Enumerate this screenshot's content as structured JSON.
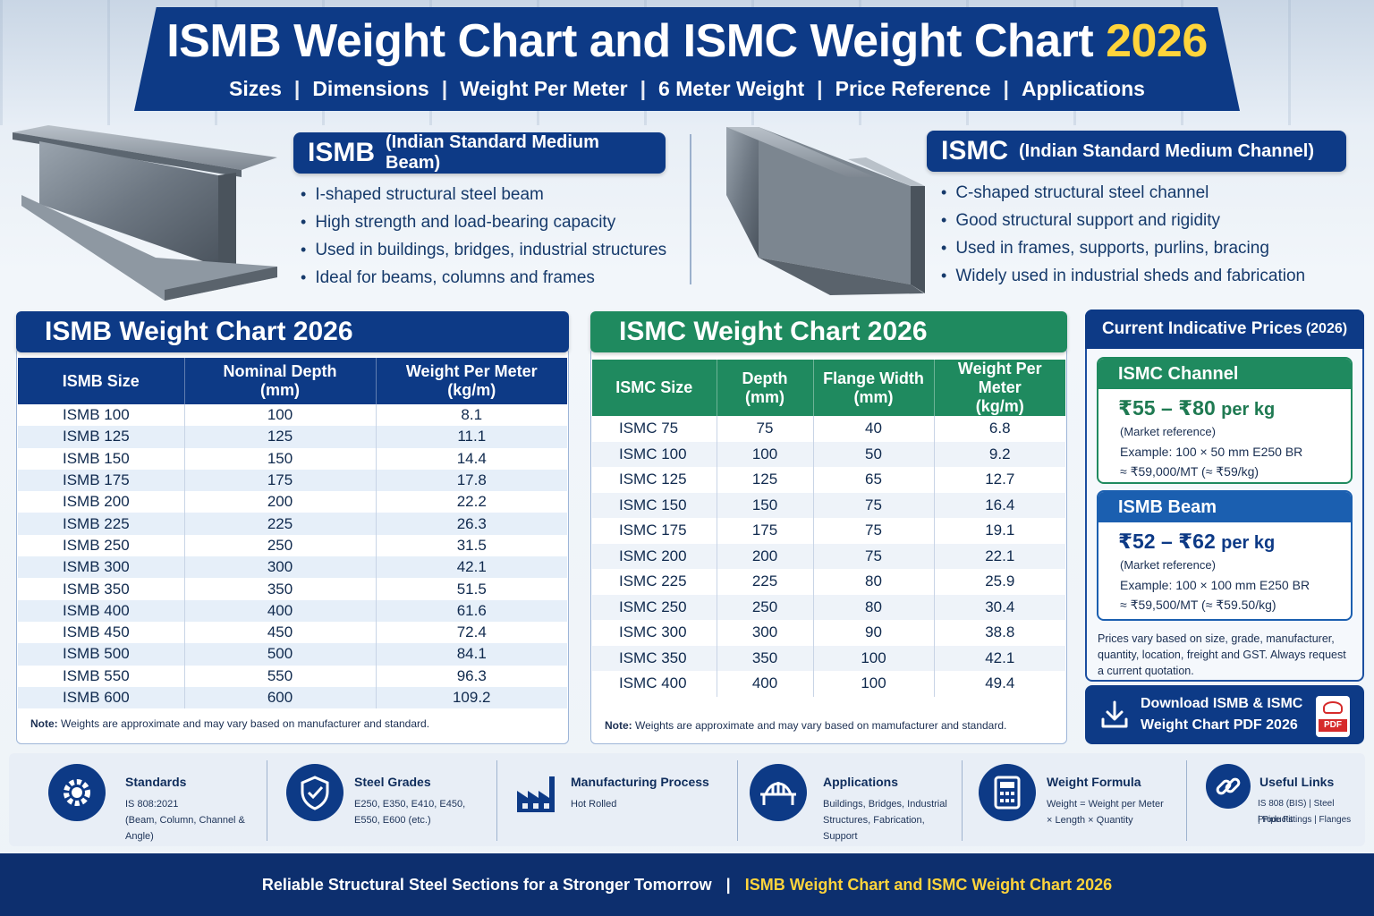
{
  "header": {
    "title_main": "ISMB Weight Chart and ISMC Weight Chart",
    "title_year": "2026",
    "subtitle_items": [
      "Sizes",
      "Dimensions",
      "Weight Per Meter",
      "6 Meter Weight",
      "Price Reference",
      "Applications"
    ],
    "separator": "|"
  },
  "ismb_intro": {
    "abbr": "ISMB",
    "full_name": "(Indian Standard Medium Beam)",
    "bullets": [
      "I-shaped structural steel beam",
      "High strength and load-bearing capacity",
      "Used in buildings, bridges, industrial structures",
      "Ideal for beams, columns and frames"
    ]
  },
  "ismc_intro": {
    "abbr": "ISMC",
    "full_name": "(Indian Standard Medium Channel)",
    "bullets": [
      "C-shaped structural steel channel",
      "Good structural support and rigidity",
      "Used in frames, supports, purlins, bracing",
      "Widely used in industrial sheds and fabrication"
    ]
  },
  "ismb_table": {
    "title": "ISMB Weight Chart 2026",
    "headers": [
      "ISMB Size",
      "Nominal Depth",
      "(mm)",
      "Weight Per Meter",
      "(kg/m)"
    ],
    "rows": [
      [
        "ISMB 100",
        "100",
        "8.1"
      ],
      [
        "ISMB 125",
        "125",
        "11.1"
      ],
      [
        "ISMB 150",
        "150",
        "14.4"
      ],
      [
        "ISMB 175",
        "175",
        "17.8"
      ],
      [
        "ISMB 200",
        "200",
        "22.2"
      ],
      [
        "ISMB 225",
        "225",
        "26.3"
      ],
      [
        "ISMB 250",
        "250",
        "31.5"
      ],
      [
        "ISMB 300",
        "300",
        "42.1"
      ],
      [
        "ISMB 350",
        "350",
        "51.5"
      ],
      [
        "ISMB 400",
        "400",
        "61.6"
      ],
      [
        "ISMB 450",
        "450",
        "72.4"
      ],
      [
        "ISMB 500",
        "500",
        "84.1"
      ],
      [
        "ISMB 550",
        "550",
        "96.3"
      ],
      [
        "ISMB 600",
        "600",
        "109.2"
      ]
    ],
    "note_label": "Note:",
    "note_text": "Weights are approximate and may vary based on manufacturer and standard."
  },
  "ismc_table": {
    "title": "ISMC  Weight Chart 2026",
    "headers": [
      "ISMC Size",
      "Depth",
      "(mm)",
      "Flange Width",
      "(mm)",
      "Weight Per Meter",
      "(kg/m)"
    ],
    "rows": [
      [
        "ISMC 75",
        "75",
        "40",
        "6.8"
      ],
      [
        "ISMC 100",
        "100",
        "50",
        "9.2"
      ],
      [
        "ISMC 125",
        "125",
        "65",
        "12.7"
      ],
      [
        "ISMC 150",
        "150",
        "75",
        "16.4"
      ],
      [
        "ISMC 175",
        "175",
        "75",
        "19.1"
      ],
      [
        "ISMC 200",
        "200",
        "75",
        "22.1"
      ],
      [
        "ISMC 225",
        "225",
        "80",
        "25.9"
      ],
      [
        "ISMC 250",
        "250",
        "80",
        "30.4"
      ],
      [
        "ISMC 300",
        "300",
        "90",
        "38.8"
      ],
      [
        "ISMC 350",
        "350",
        "100",
        "42.1"
      ],
      [
        "ISMC 400",
        "400",
        "100",
        "49.4"
      ]
    ],
    "note_label": "Note:",
    "note_text": "Weights are approximate and may vary based on mamufacturer and standard."
  },
  "prices": {
    "title": "Current Indicative Prices",
    "title_year": "(2026)",
    "channel": {
      "label": "ISMC Channel",
      "range": "₹55 – ₹80",
      "unit": "per kg",
      "ref": "(Market reference)",
      "example_line1": "Example: 100 × 50 mm E250 BR",
      "example_line2": "≈ ₹59,000/MT (≈ ₹59/kg)"
    },
    "beam": {
      "label": "ISMB Beam",
      "range": "₹52 – ₹62",
      "unit": "per kg",
      "ref": "(Market reference)",
      "example_line1": "Example: 100 × 100 mm E250 BR",
      "example_line2": "≈ ₹59,500/MT (≈ ₹59.50/kg)"
    },
    "disclaimer": "Prices vary based on size, grade, manufacturer, quantity, location, freight and GST. Always request a current quotation.",
    "download_line1": "Download ISMB & ISMC",
    "download_line2": "Weight Chart PDF 2026",
    "pdf_label": "PDF"
  },
  "info": [
    {
      "title": "Standards",
      "line1": "IS 808:2021",
      "line2": "(Beam, Column, Channel & Angle)",
      "icon": "gear-icon"
    },
    {
      "title": "Steel Grades",
      "line1": "E250, E350, E410, E450,",
      "line2": "E550, E600 (etc.)",
      "icon": "shield-check-icon"
    },
    {
      "title": "Manufacturing Process",
      "line1": "Hot Rolled",
      "line2": "",
      "icon": "factory-icon"
    },
    {
      "title": "Applications",
      "line1": "Buildings, Bridges, Industrial",
      "line2": "Structures, Fabrication, Support",
      "icon": "bridge-icon"
    },
    {
      "title": "Weight Formula",
      "line1": "Weight = Weight per Meter",
      "line2": "× Length × Quantity",
      "icon": "calculator-icon"
    },
    {
      "title": "Useful Links",
      "line1": "IS 808 (BIS) | Steel Products",
      "line2": "| Pipe Fittings | Flanges",
      "icon": "link-icon"
    }
  ],
  "footer": {
    "left": "Reliable Structural Steel Sections for a Stronger Tomorrow",
    "separator": "|",
    "right": "ISMB Weight Chart and ISMC Weight Chart 2026"
  },
  "colors": {
    "navy": "#0d3a86",
    "green": "#1f8a5f",
    "yellow": "#ffd43b",
    "ismb_row_alt": "#e6eff9"
  }
}
